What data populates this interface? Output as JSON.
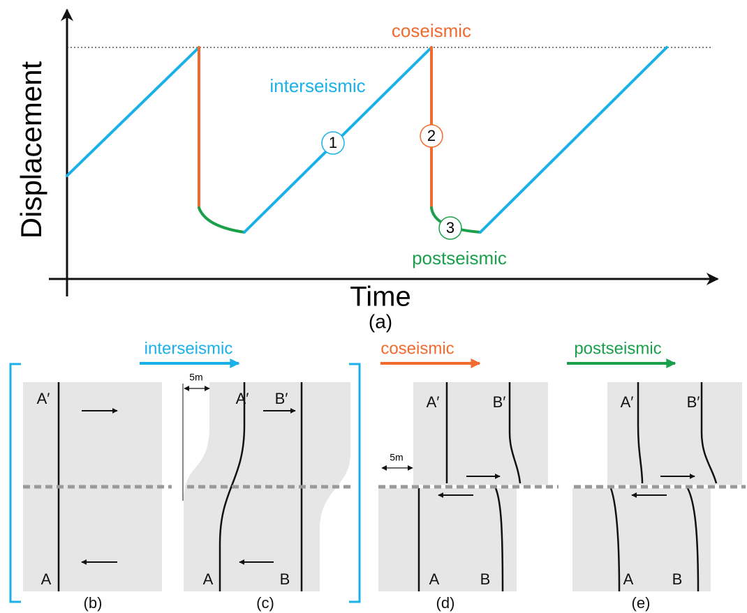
{
  "plot": {
    "y_axis": "Displacement",
    "x_axis": "Time",
    "caption": "(a)",
    "phase_labels": {
      "coseismic": "coseismic",
      "interseismic": "interseismic",
      "postseismic": "postseismic"
    },
    "markers": [
      "1",
      "2",
      "3"
    ]
  },
  "phases": [
    "interseismic",
    "coseismic",
    "postseismic"
  ],
  "panels": [
    {
      "caption": "(b)",
      "labels": [
        "A′",
        "A"
      ]
    },
    {
      "caption": "(c)",
      "labels": [
        "A′",
        "B′",
        "A",
        "B"
      ],
      "scale": "5m"
    },
    {
      "caption": "(d)",
      "labels": [
        "A′",
        "B′",
        "A",
        "B"
      ],
      "scale": "5m"
    },
    {
      "caption": "(e)",
      "labels": [
        "A′",
        "B′",
        "A",
        "B"
      ]
    }
  ]
}
